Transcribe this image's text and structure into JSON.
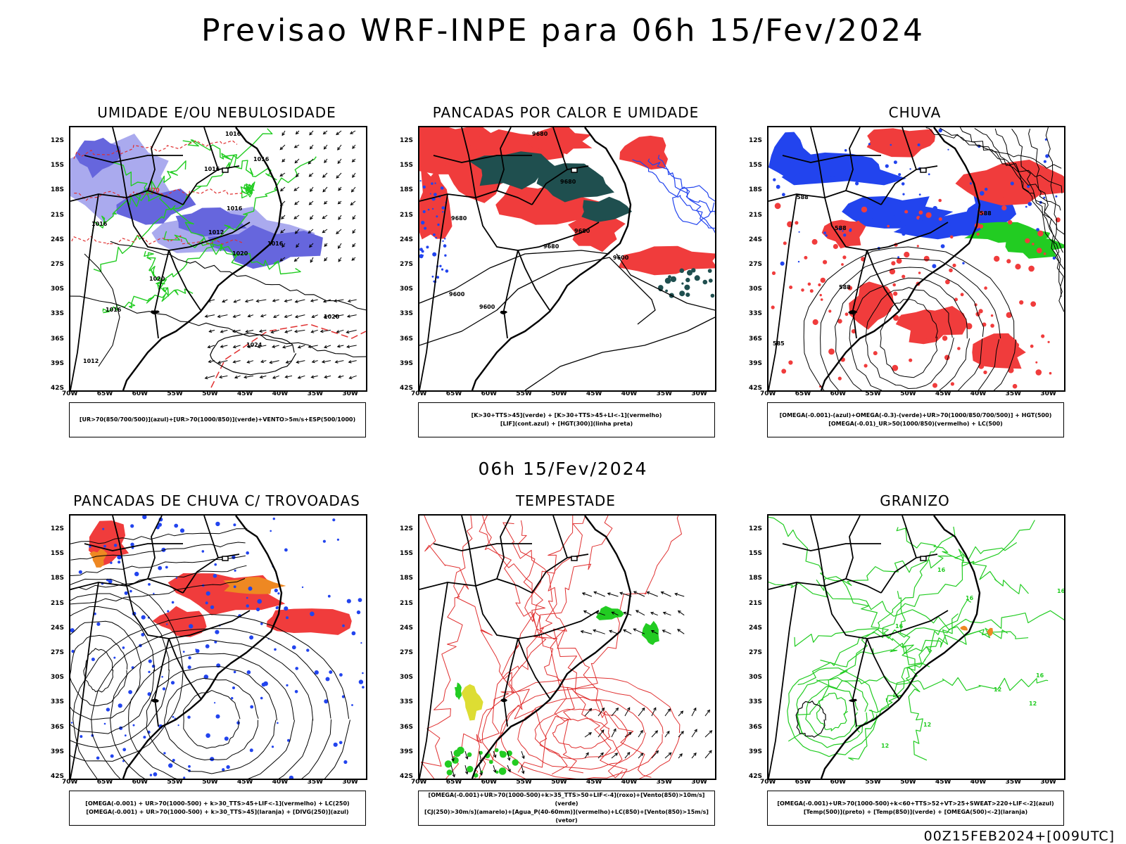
{
  "header": {
    "title": "Previsao WRF-INPE  para 06h 15/Fev/2024",
    "mid_date": "06h 15/Fev/2024",
    "run_label": "00Z15FEB2024+[009UTC]"
  },
  "axes": {
    "lat_labels": [
      "12S",
      "15S",
      "18S",
      "21S",
      "24S",
      "27S",
      "30S",
      "33S",
      "36S",
      "39S",
      "42S"
    ],
    "lon_labels": [
      "70W",
      "65W",
      "60W",
      "55W",
      "50W",
      "45W",
      "40W",
      "35W",
      "30W"
    ]
  },
  "panels": [
    {
      "id": "umidade",
      "title": "UMIDADE E/OU NEBULOSIDADE",
      "legend_lines": [
        "[UR>70(850/700/500)](azul)+[UR>70(1000/850)](verde)+VENTO>5m/s+ESP(500/1000)"
      ],
      "labels": [
        "1016",
        "1016",
        "1016",
        "1016",
        "1012",
        "1020",
        "1016",
        "1016",
        "1020",
        "1024",
        "1020",
        "1012",
        "1016",
        "570"
      ]
    },
    {
      "id": "pancadas-calor",
      "title": "PANCADAS POR CALOR E UMIDADE",
      "legend_lines": [
        "[K>30+TTS>45](verde) + [K>30+TTS>45+LI<-1](vermelho)",
        "[LIF](cont.azul) + [HGT(300)](linha preta)"
      ],
      "labels": [
        "9680",
        "9680",
        "9680",
        "9680",
        "9680",
        "9600",
        "9600",
        "9600"
      ]
    },
    {
      "id": "chuva",
      "title": "CHUVA",
      "legend_lines": [
        "[OMEGA(-0.001)-(azul)+OMEGA(-0.3)-(verde)+UR>70(1000/850/700/500)] + HGT(500)",
        "[OMEGA(-0.01)_UR>50(1000/850)(vermelho) + LC(500)"
      ],
      "labels": [
        "588",
        "588",
        "588",
        "585",
        "588"
      ]
    },
    {
      "id": "pancadas-trovoadas",
      "title": "PANCADAS DE CHUVA C/ TROVOADAS",
      "legend_lines": [
        "[OMEGA(-0.001) + UR>70(1000-500) + k>30_TTS>45+LIF<-1](vermelho) + LC(250)",
        "[OMEGA(-0.001) + UR>70(1000-500) + k>30_TTS>45](laranja) + [DIVG(250)](azul)"
      ],
      "labels": []
    },
    {
      "id": "tempestade",
      "title": "TEMPESTADE",
      "legend_lines": [
        "[OMEGA(-0.001)+UR>70(1000-500)+k>35_TTS>50+LIF<-4](roxo)+[Vento(850)>10m/s](verde)",
        "[CJ(250)>30m/s](amarelo)+[Agua_P(40-60mm)](vermelho)+LC(850)+[Vento(850)>15m/s](vetor)"
      ],
      "labels": []
    },
    {
      "id": "granizo",
      "title": "GRANIZO",
      "legend_lines": [
        "[OMEGA(-0.001)+UR>70(1000-500)+k<60+TTS>52+VT>25+SWEAT>220+LIF<-2](azul)",
        "[Temp(500)](preto) + [Temp(850)](verde) + [OMEGA(500)<-2](laranja)"
      ],
      "labels": [
        "16",
        "16",
        "16",
        "16",
        "12",
        "12",
        "12",
        "12",
        "16"
      ]
    }
  ],
  "colors": {
    "red": "#f03c3c",
    "green": "#22cc22",
    "blue": "#2244ee",
    "lavender": "#aaaaee",
    "purple": "#6666dd",
    "teal": "#1f4f4f",
    "orange": "#ee8822",
    "yellow": "#dddd33"
  }
}
